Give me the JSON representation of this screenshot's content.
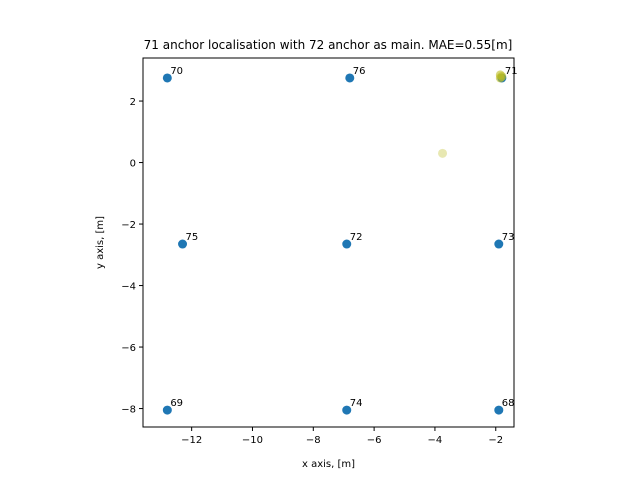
{
  "chart_data": {
    "type": "scatter",
    "title": "71 anchor localisation with 72 anchor as main. MAE=0.55[m]",
    "xlabel": "x axis, [m]",
    "ylabel": "y axis, [m]",
    "xlim": [
      -13.6,
      -1.4
    ],
    "ylim": [
      -8.6,
      3.4
    ],
    "xticks": [
      -12,
      -10,
      -8,
      -6,
      -4,
      -2
    ],
    "yticks": [
      -8,
      -6,
      -4,
      -2,
      0,
      2
    ],
    "grid": false,
    "series": [
      {
        "color": "#1f77b4",
        "points": [
          {
            "x": -12.8,
            "y": 2.75,
            "label": "70"
          },
          {
            "x": -6.8,
            "y": 2.75,
            "label": "76"
          },
          {
            "x": -1.8,
            "y": 2.75,
            "label": "71"
          },
          {
            "x": -12.3,
            "y": -2.65,
            "label": "75"
          },
          {
            "x": -6.9,
            "y": -2.65,
            "label": "72"
          },
          {
            "x": -1.9,
            "y": -2.65,
            "label": "73"
          },
          {
            "x": -12.8,
            "y": -8.05,
            "label": "69"
          },
          {
            "x": -6.9,
            "y": -8.05,
            "label": "74"
          },
          {
            "x": -1.9,
            "y": -8.05,
            "label": "68"
          }
        ]
      },
      {
        "color": "#bcbd22",
        "points": [
          {
            "x": -3.75,
            "y": 0.3,
            "opacity": 0.35
          },
          {
            "x": -1.85,
            "y": 2.85,
            "opacity": 0.6
          },
          {
            "x": -1.8,
            "y": 2.8,
            "opacity": 0.6
          },
          {
            "x": -1.85,
            "y": 2.75,
            "opacity": 0.6
          }
        ]
      }
    ]
  }
}
